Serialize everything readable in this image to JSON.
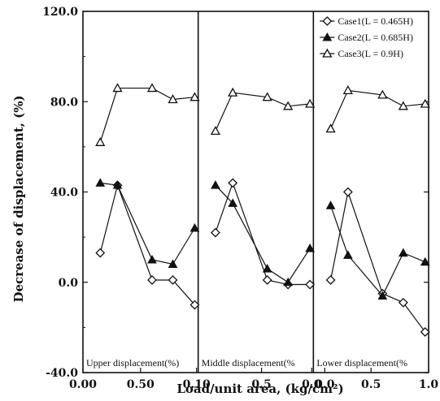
{
  "chart_data": {
    "type": "line",
    "title": "",
    "xlabel": "Load/unit area, (kg/cm²)",
    "ylabel": "Decrease of displacement, (%)",
    "ylim": [
      -40,
      120
    ],
    "yticks": [
      "-40.0",
      "0.0",
      "40.0",
      "80.0",
      "120.0"
    ],
    "legend_position": "top-right",
    "grid": false,
    "legend": [
      {
        "name": "Case1(L = 0.465H)",
        "marker": "open-diamond"
      },
      {
        "name": "Case2(L = 0.685H)",
        "marker": "filled-triangle"
      },
      {
        "name": "Case3(L = 0.9H)",
        "marker": "open-triangle"
      }
    ],
    "panels": [
      {
        "label": "Upper displacement(%)",
        "xlim": [
          0,
          1
        ],
        "xticks": [
          "0.00",
          "0.50"
        ],
        "series": [
          {
            "name": "Case1(L = 0.465H)",
            "x": [
              0.15,
              0.3,
              0.6,
              0.78,
              0.97
            ],
            "y": [
              13,
              43,
              1,
              1,
              -10
            ]
          },
          {
            "name": "Case2(L = 0.685H)",
            "x": [
              0.15,
              0.3,
              0.6,
              0.78,
              0.97
            ],
            "y": [
              44,
              43,
              10,
              8,
              24
            ]
          },
          {
            "name": "Case3(L = 0.9H)",
            "x": [
              0.15,
              0.3,
              0.6,
              0.78,
              0.97
            ],
            "y": [
              62,
              86,
              86,
              81,
              82
            ]
          }
        ]
      },
      {
        "label": "Middle displacement(%",
        "xlim": [
          0,
          1
        ],
        "xticks": [
          "0.10",
          "0.5",
          "0.0"
        ],
        "series": [
          {
            "name": "Case1(L = 0.465H)",
            "x": [
              0.15,
              0.3,
              0.6,
              0.78,
              0.97
            ],
            "y": [
              22,
              44,
              1,
              -1,
              -1
            ]
          },
          {
            "name": "Case2(L = 0.685H)",
            "x": [
              0.15,
              0.3,
              0.6,
              0.78,
              0.97
            ],
            "y": [
              43,
              35,
              6,
              0,
              15
            ]
          },
          {
            "name": "Case3(L = 0.9H)",
            "x": [
              0.15,
              0.3,
              0.6,
              0.78,
              0.97
            ],
            "y": [
              67,
              84,
              82,
              78,
              79
            ]
          }
        ]
      },
      {
        "label": "Lower displacement(%",
        "xlim": [
          0,
          1
        ],
        "xticks": [
          "0.0",
          "0.5",
          "1.0"
        ],
        "series": [
          {
            "name": "Case1(L = 0.465H)",
            "x": [
              0.15,
              0.3,
              0.6,
              0.78,
              0.97
            ],
            "y": [
              1,
              40,
              -5,
              -9,
              -22
            ]
          },
          {
            "name": "Case2(L = 0.685H)",
            "x": [
              0.15,
              0.3,
              0.6,
              0.78,
              0.97
            ],
            "y": [
              34,
              12,
              -6,
              13,
              9
            ]
          },
          {
            "name": "Case3(L = 0.9H)",
            "x": [
              0.15,
              0.3,
              0.6,
              0.78,
              0.97
            ],
            "y": [
              68,
              85,
              83,
              78,
              79
            ]
          }
        ]
      }
    ]
  }
}
